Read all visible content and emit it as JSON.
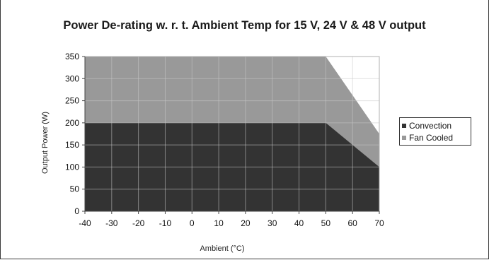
{
  "chart_data": {
    "type": "area",
    "title": "Power De-rating w. r. t.  Ambient Temp for 15 V, 24 V & 48 V output",
    "xlabel": "Ambient (°C)",
    "ylabel": "Output Power (W)",
    "xlim": [
      -40,
      70
    ],
    "ylim": [
      0,
      350
    ],
    "xticks": [
      -40,
      -30,
      -20,
      -10,
      0,
      10,
      20,
      30,
      40,
      50,
      60,
      70
    ],
    "yticks": [
      0,
      50,
      100,
      150,
      200,
      250,
      300,
      350
    ],
    "grid": true,
    "legend_position": "right",
    "series": [
      {
        "name": "Convection",
        "color": "#333333",
        "x": [
          -40,
          50,
          60,
          70
        ],
        "y": [
          200,
          200,
          150,
          100
        ]
      },
      {
        "name": "Fan Cooled",
        "color": "#999999",
        "x": [
          -40,
          50,
          70
        ],
        "y": [
          350,
          350,
          175
        ]
      }
    ]
  },
  "legend": {
    "items": [
      {
        "label": "Convection",
        "color": "#333333"
      },
      {
        "label": "Fan Cooled",
        "color": "#999999"
      }
    ]
  },
  "colors": {
    "plot_background": "#ffffff",
    "grid": "#c8c8c8"
  }
}
